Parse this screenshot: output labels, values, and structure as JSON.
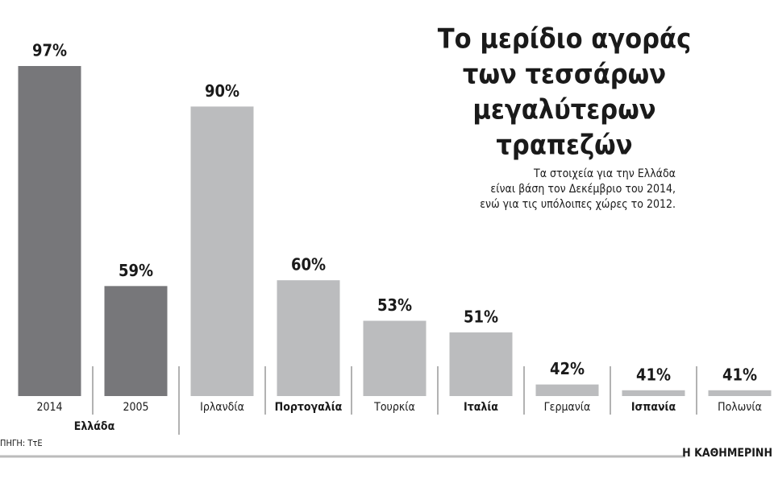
{
  "chart_data": {
    "type": "bar",
    "title": [
      "Το μερίδιο αγοράς",
      "των τεσσάρων",
      "μεγαλύτερων",
      "τραπεζών"
    ],
    "subtitle": [
      "Τα στοιχεία για την Ελλάδα",
      "είναι βάση τον Δεκέμβριο του 2014,",
      "ενώ για τις υπόλοιπες χώρες το 2012."
    ],
    "categories": [
      "2014",
      "2005",
      "Ιρλανδία",
      "Πορτογαλία",
      "Τουρκία",
      "Ιταλία",
      "Γερμανία",
      "Ισπανία",
      "Πολωνία"
    ],
    "bold_categories": [
      false,
      false,
      false,
      true,
      false,
      true,
      false,
      true,
      false
    ],
    "group_label": "Ελλάδα",
    "values": [
      97,
      59,
      90,
      60,
      53,
      51,
      42,
      41,
      41
    ],
    "value_labels": [
      "97%",
      "59%",
      "90%",
      "60%",
      "53%",
      "51%",
      "42%",
      "41%",
      "41%"
    ],
    "colors": [
      "#77777a",
      "#77777a",
      "#bbbcbe",
      "#bbbcbe",
      "#bbbcbe",
      "#bbbcbe",
      "#bbbcbe",
      "#bbbcbe",
      "#bbbcbe"
    ],
    "ylim": [
      40,
      100
    ],
    "source": "ΠΗΓΗ: ΤτΕ",
    "publisher": "Η ΚΑΘΗΜΕΡΙΝΗ"
  }
}
